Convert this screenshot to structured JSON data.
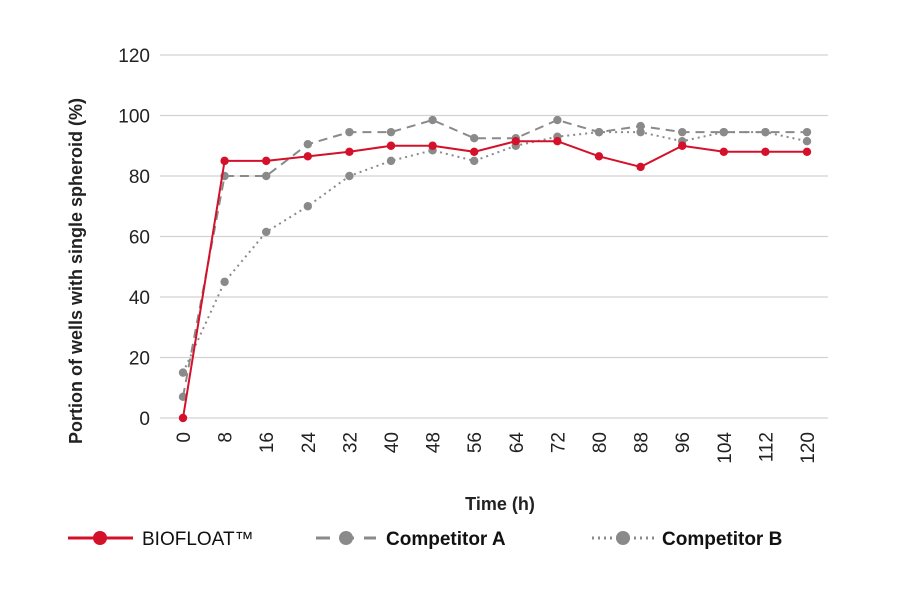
{
  "chart_data": {
    "type": "line",
    "title": "",
    "xlabel": "Time (h)",
    "ylabel": "Portion of wells with single spheroid (%)",
    "x": [
      0,
      8,
      16,
      24,
      32,
      40,
      48,
      56,
      64,
      72,
      80,
      88,
      96,
      104,
      112,
      120
    ],
    "x_ticks": [
      "0",
      "8",
      "16",
      "24",
      "32",
      "40",
      "48",
      "56",
      "64",
      "72",
      "80",
      "88",
      "96",
      "104",
      "112",
      "120"
    ],
    "y_ticks": [
      "0",
      "20",
      "40",
      "60",
      "80",
      "100",
      "120"
    ],
    "ylim": [
      0,
      120
    ],
    "grid": "horizontal",
    "legend_position": "bottom",
    "series": [
      {
        "name": "BIOFLOAT™",
        "color": "#d4102a",
        "style": "solid",
        "values": [
          0,
          85,
          85,
          86.5,
          88,
          90,
          90,
          88,
          91.5,
          91.5,
          86.5,
          83,
          90,
          88,
          88,
          88
        ]
      },
      {
        "name": "Competitor A",
        "color": "#8a8a8a",
        "style": "dashed",
        "values": [
          7,
          80,
          80,
          90.5,
          94.5,
          94.5,
          98.5,
          92.5,
          92.5,
          98.5,
          94.5,
          96.5,
          94.5,
          94.5,
          94.5,
          94.5
        ]
      },
      {
        "name": "Competitor B",
        "color": "#8a8a8a",
        "style": "dotted",
        "values": [
          15,
          45,
          61.5,
          70,
          80,
          85,
          88.5,
          85,
          90,
          93,
          94.5,
          94.5,
          91.5,
          94.5,
          94.5,
          91.5
        ]
      }
    ]
  }
}
